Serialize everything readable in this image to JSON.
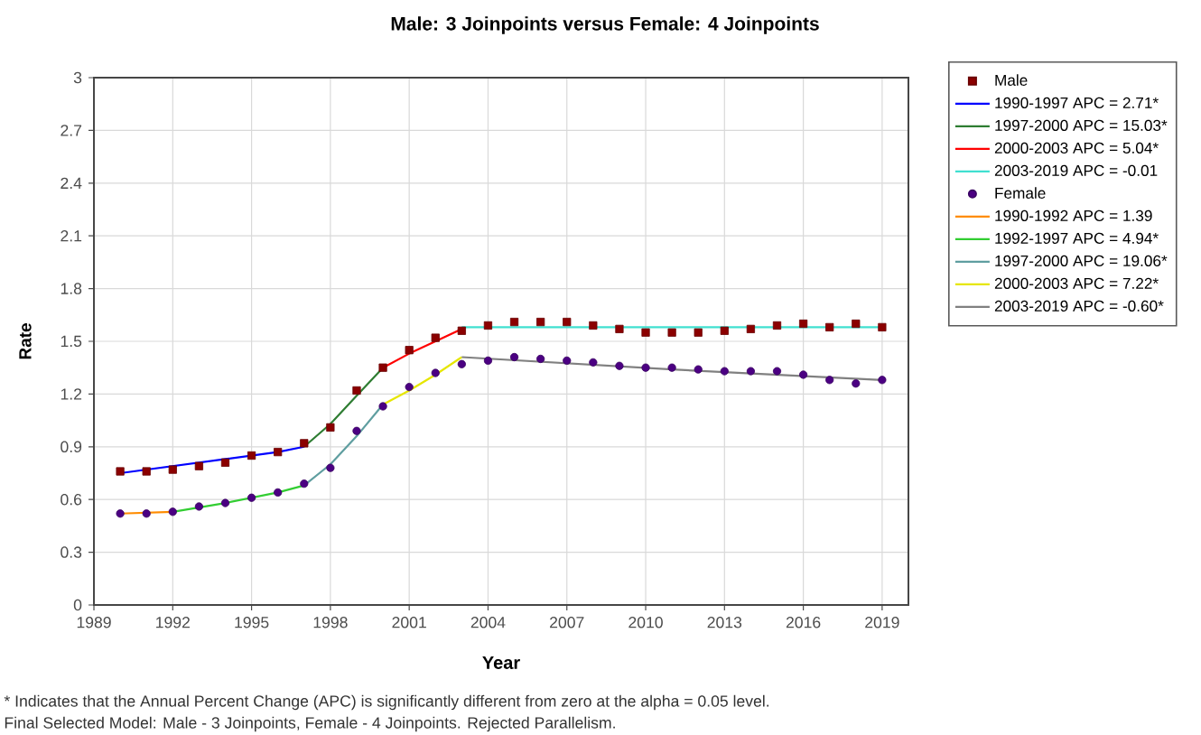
{
  "chart_data": {
    "type": "line",
    "title": "Male: 3 Joinpoints versus Female: 4 Joinpoints",
    "xlabel": "Year",
    "ylabel": "Rate",
    "xlim": [
      1989,
      2020
    ],
    "xticks": [
      1989,
      1992,
      1995,
      1998,
      2001,
      2004,
      2007,
      2010,
      2013,
      2016,
      2019
    ],
    "ylim": [
      0,
      3
    ],
    "yticks": [
      0,
      0.3,
      0.6,
      0.9,
      1.2,
      1.5,
      1.8,
      2.1,
      2.4,
      2.7,
      3
    ],
    "grid": true,
    "legend": "top right",
    "series": [
      {
        "name": "Male",
        "type": "scatter",
        "marker": "square",
        "color": "#8b0000",
        "x": [
          1990,
          1991,
          1992,
          1993,
          1994,
          1995,
          1996,
          1997,
          1998,
          1999,
          2000,
          2001,
          2002,
          2003,
          2004,
          2005,
          2006,
          2007,
          2008,
          2009,
          2010,
          2011,
          2012,
          2013,
          2014,
          2015,
          2016,
          2017,
          2018,
          2019
        ],
        "values": [
          0.76,
          0.76,
          0.77,
          0.79,
          0.81,
          0.85,
          0.87,
          0.92,
          1.01,
          1.22,
          1.35,
          1.45,
          1.52,
          1.56,
          1.59,
          1.61,
          1.61,
          1.61,
          1.59,
          1.57,
          1.55,
          1.55,
          1.55,
          1.56,
          1.57,
          1.59,
          1.6,
          1.58,
          1.6,
          1.58
        ]
      },
      {
        "name": "1990-1997 APC = 2.71*",
        "type": "line",
        "color": "#0000ff",
        "x": [
          1990,
          1992,
          1994,
          1996,
          1997
        ],
        "values": [
          0.75,
          0.79,
          0.83,
          0.87,
          0.9
        ]
      },
      {
        "name": "1997-2000 APC = 15.03*",
        "type": "line",
        "color": "#2e7d32",
        "x": [
          1997,
          1998,
          1999,
          2000
        ],
        "values": [
          0.9,
          1.03,
          1.19,
          1.35
        ]
      },
      {
        "name": "2000-2003 APC = 5.04*",
        "type": "line",
        "color": "#ff0000",
        "x": [
          2000,
          2001,
          2002,
          2003
        ],
        "values": [
          1.35,
          1.43,
          1.5,
          1.57
        ]
      },
      {
        "name": "2003-2019 APC = -0.01",
        "type": "line",
        "color": "#40e0d0",
        "x": [
          2003,
          2011,
          2019
        ],
        "values": [
          1.58,
          1.58,
          1.58
        ]
      },
      {
        "name": "Female",
        "type": "scatter",
        "marker": "circle",
        "color": "#4b0082",
        "x": [
          1990,
          1991,
          1992,
          1993,
          1994,
          1995,
          1996,
          1997,
          1998,
          1999,
          2000,
          2001,
          2002,
          2003,
          2004,
          2005,
          2006,
          2007,
          2008,
          2009,
          2010,
          2011,
          2012,
          2013,
          2014,
          2015,
          2016,
          2017,
          2018,
          2019
        ],
        "values": [
          0.52,
          0.52,
          0.53,
          0.56,
          0.58,
          0.61,
          0.64,
          0.69,
          0.78,
          0.99,
          1.13,
          1.24,
          1.32,
          1.37,
          1.39,
          1.41,
          1.4,
          1.39,
          1.38,
          1.36,
          1.35,
          1.35,
          1.34,
          1.33,
          1.33,
          1.33,
          1.31,
          1.28,
          1.26,
          1.28
        ]
      },
      {
        "name": "1990-1992 APC = 1.39",
        "type": "line",
        "color": "#ff8c00",
        "x": [
          1990,
          1992
        ],
        "values": [
          0.52,
          0.53
        ]
      },
      {
        "name": "1992-1997 APC = 4.94*",
        "type": "line",
        "color": "#32cd32",
        "x": [
          1992,
          1994,
          1996,
          1997
        ],
        "values": [
          0.53,
          0.58,
          0.64,
          0.68
        ]
      },
      {
        "name": "1997-2000 APC = 19.06*",
        "type": "line",
        "color": "#5f9ea0",
        "x": [
          1997,
          1998,
          1999,
          2000
        ],
        "values": [
          0.68,
          0.8,
          0.96,
          1.14
        ]
      },
      {
        "name": "2000-2003 APC = 7.22*",
        "type": "line",
        "color": "#e6e600",
        "x": [
          2000,
          2001,
          2002,
          2003
        ],
        "values": [
          1.14,
          1.22,
          1.31,
          1.41
        ]
      },
      {
        "name": "2003-2019 APC = -0.60*",
        "type": "line",
        "color": "#808080",
        "x": [
          2003,
          2011,
          2019
        ],
        "values": [
          1.41,
          1.34,
          1.28
        ]
      }
    ],
    "annotations": [
      "* Indicates that the Annual Percent Change (APC) is significantly different from zero at the alpha = 0.05 level.",
      "Final Selected Model: Male - 3 Joinpoints, Female - 4 Joinpoints. Rejected Parallelism."
    ]
  }
}
